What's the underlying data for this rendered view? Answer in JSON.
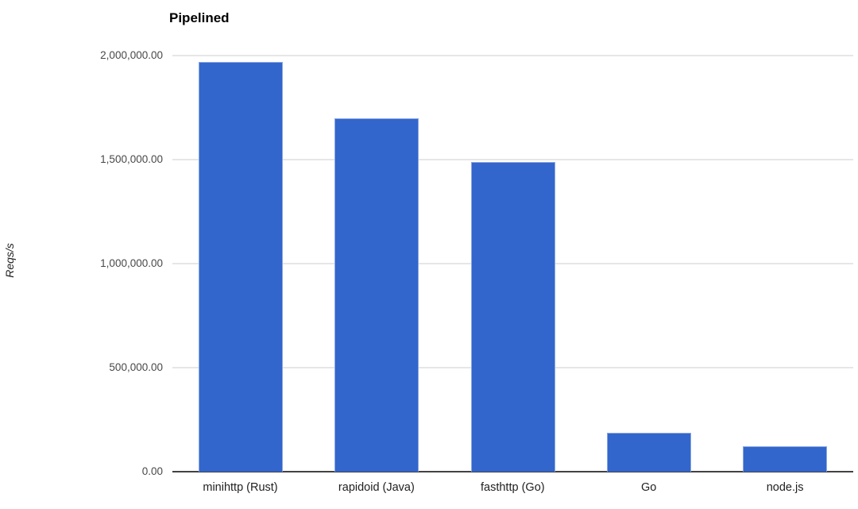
{
  "chart_data": {
    "type": "bar",
    "title": "Pipelined",
    "ylabel": "Reqs/s",
    "xlabel": "",
    "categories": [
      "minihttp (Rust)",
      "rapidoid (Java)",
      "fasthttp (Go)",
      "Go",
      "node.js"
    ],
    "values": [
      1970000,
      1700000,
      1490000,
      187000,
      122000
    ],
    "ylim": [
      0,
      2000000
    ],
    "yticks": [
      {
        "value": 0,
        "label": "0.00"
      },
      {
        "value": 500000,
        "label": "500,000.00"
      },
      {
        "value": 1000000,
        "label": "1,000,000.00"
      },
      {
        "value": 1500000,
        "label": "1,500,000.00"
      },
      {
        "value": 2000000,
        "label": "2,000,000.00"
      }
    ],
    "grid": true,
    "legend_position": "none",
    "colors": {
      "bar_fill": "#3366cc",
      "bar_border": "#8aa7e2",
      "gridline": "#e6e6e6",
      "axis_line": "#424242",
      "ytick_label": "#484848",
      "xtick_label": "#1f1f1f",
      "title": "#000000",
      "background": "#ffffff"
    }
  }
}
